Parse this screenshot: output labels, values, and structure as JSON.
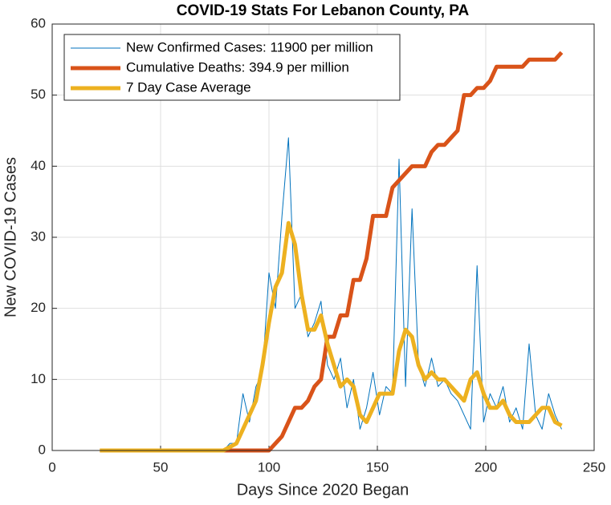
{
  "chart_data": {
    "type": "line",
    "title": "COVID-19 Stats For Lebanon County, PA",
    "xlabel": "Days Since 2020 Began",
    "ylabel": "New COVID-19 Cases",
    "x": [
      22,
      25,
      28,
      31,
      34,
      37,
      40,
      43,
      46,
      49,
      52,
      55,
      58,
      61,
      64,
      67,
      70,
      73,
      76,
      79,
      82,
      85,
      88,
      91,
      94,
      97,
      100,
      103,
      106,
      109,
      112,
      115,
      118,
      121,
      124,
      127,
      130,
      133,
      136,
      139,
      142,
      145,
      148,
      151,
      154,
      157,
      160,
      163,
      166,
      169,
      172,
      175,
      178,
      181,
      184,
      187,
      190,
      193,
      196,
      199,
      202,
      205,
      208,
      211,
      214,
      217,
      220,
      223,
      226,
      229,
      232,
      235
    ],
    "series": [
      {
        "name": "New Confirmed Cases: 11900 per million",
        "color": "#0072BD",
        "width": 1,
        "values": [
          0,
          0,
          0,
          0,
          0,
          0,
          0,
          0,
          0,
          0,
          0,
          0,
          0,
          0,
          0,
          0,
          0,
          0,
          0,
          0,
          1,
          1,
          8,
          4,
          9,
          11,
          25,
          20,
          33,
          44,
          20,
          22,
          16,
          18,
          21,
          12,
          10,
          13,
          6,
          10,
          3,
          6,
          11,
          5,
          9,
          8,
          41,
          9,
          34,
          12,
          9,
          13,
          9,
          10,
          8,
          7,
          5,
          3,
          26,
          4,
          8,
          6,
          9,
          4,
          6,
          3,
          15,
          5,
          3,
          8,
          5,
          3
        ]
      },
      {
        "name": "Cumulative Deaths: 394.9 per million",
        "color": "#D95319",
        "width": 5,
        "values": [
          0,
          0,
          0,
          0,
          0,
          0,
          0,
          0,
          0,
          0,
          0,
          0,
          0,
          0,
          0,
          0,
          0,
          0,
          0,
          0,
          0,
          0,
          0,
          0,
          0,
          0,
          0,
          1,
          2,
          4,
          6,
          6,
          7,
          9,
          10,
          16,
          16,
          19,
          19,
          24,
          24,
          27,
          33,
          33,
          33,
          37,
          38,
          39,
          40,
          40,
          40,
          42,
          43,
          43,
          44,
          45,
          50,
          50,
          51,
          51,
          52,
          54,
          54,
          54,
          54,
          54,
          55,
          55,
          55,
          55,
          55,
          56
        ]
      },
      {
        "name": "7 Day Case Average",
        "color": "#EDB120",
        "width": 5,
        "values": [
          0,
          0,
          0,
          0,
          0,
          0,
          0,
          0,
          0,
          0,
          0,
          0,
          0,
          0,
          0,
          0,
          0,
          0,
          0,
          0,
          0.5,
          1,
          3,
          5,
          7,
          12,
          18,
          23,
          25,
          32,
          29,
          22,
          17,
          17,
          19,
          15,
          12,
          9,
          10,
          9,
          5,
          4,
          6,
          8,
          8,
          8,
          14,
          17,
          16,
          12,
          10,
          11,
          10,
          10,
          9,
          8,
          7,
          10,
          11,
          8,
          6,
          6,
          7,
          5,
          4,
          4,
          4,
          5,
          6,
          6,
          4,
          3.5
        ]
      }
    ],
    "xlim": [
      0,
      250
    ],
    "xticks": [
      0,
      50,
      100,
      150,
      200,
      250
    ],
    "ylim": [
      0,
      60
    ],
    "yticks": [
      0,
      10,
      20,
      30,
      40,
      50,
      60
    ],
    "grid": true,
    "legend": "upper left"
  }
}
